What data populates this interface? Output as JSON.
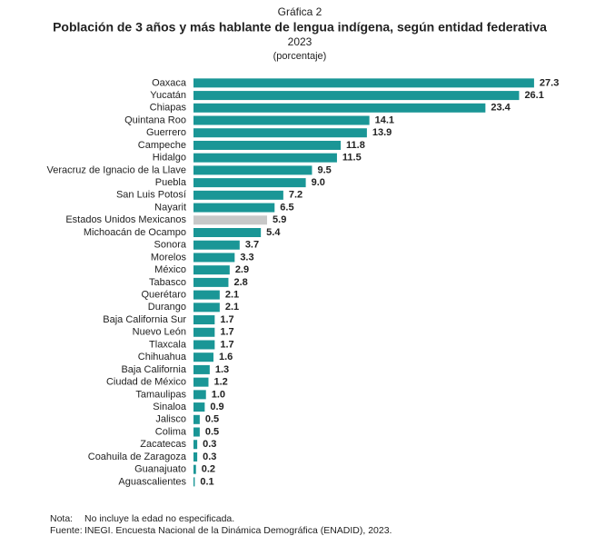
{
  "chart_data": {
    "type": "bar",
    "orientation": "horizontal",
    "label": "Gráfica 2",
    "title": "Población de 3 años y más hablante de lengua indígena, según entidad federativa",
    "subtitle": "2023",
    "unit_label": "(porcentaje)",
    "categories": [
      "Oaxaca",
      "Yucatán",
      "Chiapas",
      "Quintana Roo",
      "Guerrero",
      "Campeche",
      "Hidalgo",
      "Veracruz de Ignacio de la Llave",
      "Puebla",
      "San Luis Potosí",
      "Nayarit",
      "Estados Unidos Mexicanos",
      "Michoacán de Ocampo",
      "Sonora",
      "Morelos",
      "México",
      "Tabasco",
      "Querétaro",
      "Durango",
      "Baja California Sur",
      "Nuevo León",
      "Tlaxcala",
      "Chihuahua",
      "Baja California",
      "Ciudad de México",
      "Tamaulipas",
      "Sinaloa",
      "Jalisco",
      "Colima",
      "Zacatecas",
      "Coahuila de Zaragoza",
      "Guanajuato",
      "Aguascalientes"
    ],
    "values": [
      27.3,
      26.1,
      23.4,
      14.1,
      13.9,
      11.8,
      11.5,
      9.5,
      9.0,
      7.2,
      6.5,
      5.9,
      5.4,
      3.7,
      3.3,
      2.9,
      2.8,
      2.1,
      2.1,
      1.7,
      1.7,
      1.7,
      1.6,
      1.3,
      1.2,
      1.0,
      0.9,
      0.5,
      0.5,
      0.3,
      0.3,
      0.2,
      0.1
    ],
    "value_labels": [
      "27.3",
      "26.1",
      "23.4",
      "14.1",
      "13.9",
      "11.8",
      "11.5",
      "9.5",
      "9.0",
      "7.2",
      "6.5",
      "5.9",
      "5.4",
      "3.7",
      "3.3",
      "2.9",
      "2.8",
      "2.1",
      "2.1",
      "1.7",
      "1.7",
      "1.7",
      "1.6",
      "1.3",
      "1.2",
      "1.0",
      "0.9",
      "0.5",
      "0.5",
      "0.3",
      "0.3",
      "0.2",
      "0.1"
    ],
    "colors": [
      "#1a9696",
      "#1a9696",
      "#1a9696",
      "#1a9696",
      "#1a9696",
      "#1a9696",
      "#1a9696",
      "#1a9696",
      "#1a9696",
      "#1a9696",
      "#1a9696",
      "#c8c8c8",
      "#1a9696",
      "#1a9696",
      "#1a9696",
      "#1a9696",
      "#1a9696",
      "#1a9696",
      "#1a9696",
      "#1a9696",
      "#1a9696",
      "#1a9696",
      "#1a9696",
      "#1a9696",
      "#1a9696",
      "#1a9696",
      "#1a9696",
      "#1a9696",
      "#1a9696",
      "#1a9696",
      "#1a9696",
      "#1a9696",
      "#1a9696"
    ],
    "xlim": [
      0,
      30
    ],
    "notes": [
      {
        "key": "Nota:",
        "text": "No incluye la edad no especificada."
      },
      {
        "key": "Fuente:",
        "text": "INEGI. Encuesta Nacional de la Dinámica Demográfica (ENADID), 2023."
      }
    ]
  }
}
